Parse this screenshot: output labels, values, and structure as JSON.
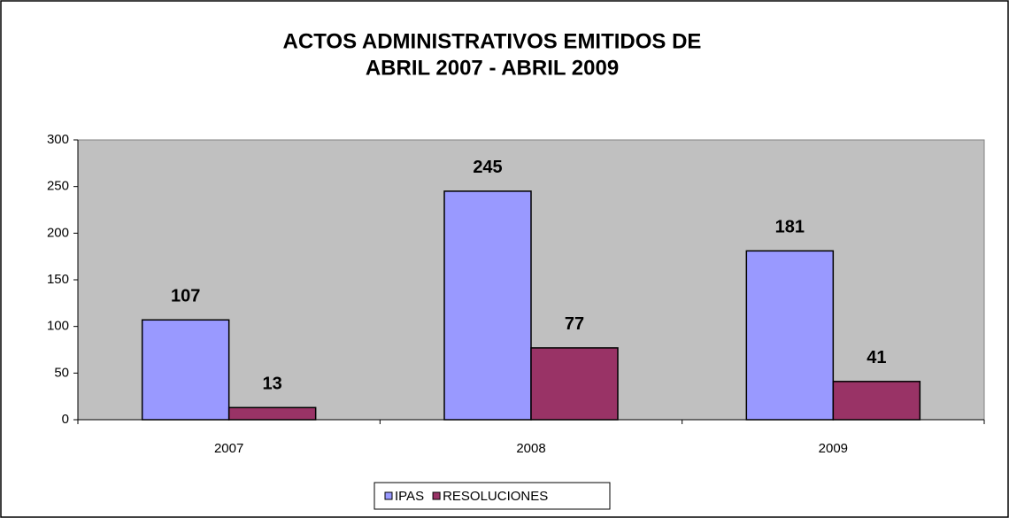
{
  "chart_data": {
    "type": "bar",
    "title": [
      "ACTOS ADMINISTRATIVOS EMITIDOS DE",
      "ABRIL 2007 - ABRIL 2009"
    ],
    "categories": [
      "2007",
      "2008",
      "2009"
    ],
    "series": [
      {
        "name": "IPAS",
        "color": "#9999ff",
        "values": [
          107,
          245,
          181
        ]
      },
      {
        "name": "RESOLUCIONES",
        "color": "#993366",
        "values": [
          13,
          77,
          41
        ]
      }
    ],
    "ylim": [
      0,
      300
    ],
    "yticks": [
      0,
      50,
      100,
      150,
      200,
      250,
      300
    ],
    "grid": false,
    "legend": "bottom"
  }
}
